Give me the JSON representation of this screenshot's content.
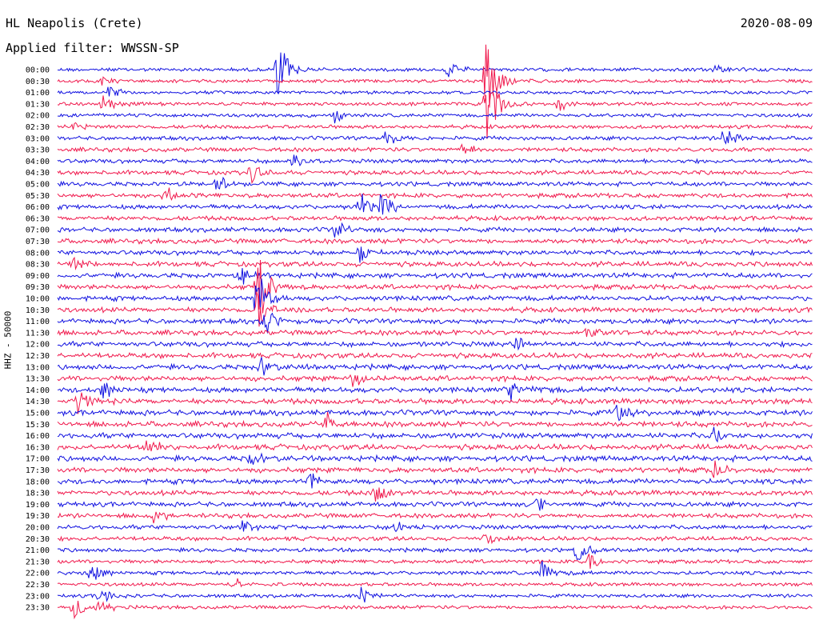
{
  "header": {
    "station": "HL Neapolis (Crete)",
    "date": "2020-08-09",
    "filter": "Applied filter: WWSSN-SP",
    "channel": "HHZ - 50000"
  },
  "colors": {
    "even_row": "#1010e0",
    "odd_row": "#f0184c"
  },
  "chart_data": {
    "type": "line",
    "title": "HL Neapolis (Crete)",
    "subtitle": "Applied filter: WWSSN-SP",
    "ylabel": "HHZ - 50000",
    "row_labels": [
      "00:00",
      "00:30",
      "01:00",
      "01:30",
      "02:00",
      "02:30",
      "03:00",
      "03:30",
      "04:00",
      "04:30",
      "05:00",
      "05:30",
      "06:00",
      "06:30",
      "07:00",
      "07:30",
      "08:00",
      "08:30",
      "09:00",
      "09:30",
      "10:00",
      "10:30",
      "11:00",
      "11:30",
      "12:00",
      "12:30",
      "13:00",
      "13:30",
      "14:00",
      "14:30",
      "15:00",
      "15:30",
      "16:00",
      "16:30",
      "17:00",
      "17:30",
      "18:00",
      "18:30",
      "19:00",
      "19:30",
      "20:00",
      "20:30",
      "21:00",
      "21:30",
      "22:00",
      "22:30",
      "23:00",
      "23:30"
    ],
    "row_colors": [
      "blue",
      "red"
    ],
    "noise_level": [
      0.35,
      0.3,
      0.3,
      0.35,
      0.35,
      0.4,
      0.45,
      0.5,
      0.5,
      0.55,
      0.55,
      0.6,
      0.6,
      0.6,
      0.6,
      0.65,
      0.65,
      0.7,
      0.7,
      0.7,
      0.7,
      0.7,
      0.7,
      0.7,
      0.7,
      0.75,
      0.75,
      0.75,
      0.8,
      0.8,
      0.8,
      0.8,
      0.8,
      0.8,
      0.8,
      0.75,
      0.75,
      0.7,
      0.65,
      0.6,
      0.55,
      0.5,
      0.45,
      0.4,
      0.4,
      0.35,
      0.35,
      0.35
    ],
    "events": [
      {
        "row": 0,
        "minute": 8.7,
        "amp": 45
      },
      {
        "row": 0,
        "minute": 15.5,
        "amp": 12
      },
      {
        "row": 0,
        "minute": 26.0,
        "amp": 8
      },
      {
        "row": 1,
        "minute": 1.6,
        "amp": 10
      },
      {
        "row": 1,
        "minute": 17.0,
        "amp": 55
      },
      {
        "row": 2,
        "minute": 2.0,
        "amp": 9
      },
      {
        "row": 3,
        "minute": 1.8,
        "amp": 12
      },
      {
        "row": 3,
        "minute": 17.0,
        "amp": 60
      },
      {
        "row": 3,
        "minute": 19.8,
        "amp": 14
      },
      {
        "row": 4,
        "minute": 11.0,
        "amp": 10
      },
      {
        "row": 5,
        "minute": 0.6,
        "amp": 8
      },
      {
        "row": 6,
        "minute": 13.0,
        "amp": 14
      },
      {
        "row": 6,
        "minute": 26.5,
        "amp": 18
      },
      {
        "row": 7,
        "minute": 16.0,
        "amp": 12
      },
      {
        "row": 8,
        "minute": 9.3,
        "amp": 14
      },
      {
        "row": 9,
        "minute": 7.6,
        "amp": 16
      },
      {
        "row": 10,
        "minute": 6.3,
        "amp": 14
      },
      {
        "row": 11,
        "minute": 4.2,
        "amp": 14
      },
      {
        "row": 12,
        "minute": 12.0,
        "amp": 22
      },
      {
        "row": 12,
        "minute": 12.8,
        "amp": 18
      },
      {
        "row": 14,
        "minute": 11.0,
        "amp": 12
      },
      {
        "row": 16,
        "minute": 12.0,
        "amp": 14
      },
      {
        "row": 17,
        "minute": 0.6,
        "amp": 12
      },
      {
        "row": 18,
        "minute": 7.2,
        "amp": 16
      },
      {
        "row": 19,
        "minute": 7.9,
        "amp": 60
      },
      {
        "row": 20,
        "minute": 7.9,
        "amp": 45
      },
      {
        "row": 21,
        "minute": 7.9,
        "amp": 30
      },
      {
        "row": 22,
        "minute": 8.2,
        "amp": 22
      },
      {
        "row": 23,
        "minute": 21.0,
        "amp": 12
      },
      {
        "row": 24,
        "minute": 18.2,
        "amp": 12
      },
      {
        "row": 26,
        "minute": 8.0,
        "amp": 15
      },
      {
        "row": 27,
        "minute": 11.7,
        "amp": 14
      },
      {
        "row": 28,
        "minute": 1.8,
        "amp": 14
      },
      {
        "row": 28,
        "minute": 18.0,
        "amp": 14
      },
      {
        "row": 29,
        "minute": 0.8,
        "amp": 18
      },
      {
        "row": 30,
        "minute": 22.2,
        "amp": 16
      },
      {
        "row": 31,
        "minute": 10.7,
        "amp": 14
      },
      {
        "row": 32,
        "minute": 26.0,
        "amp": 14
      },
      {
        "row": 33,
        "minute": 3.5,
        "amp": 14
      },
      {
        "row": 34,
        "minute": 7.6,
        "amp": 14
      },
      {
        "row": 35,
        "minute": 26.0,
        "amp": 16
      },
      {
        "row": 36,
        "minute": 10.0,
        "amp": 14
      },
      {
        "row": 37,
        "minute": 12.6,
        "amp": 14
      },
      {
        "row": 38,
        "minute": 19.0,
        "amp": 14
      },
      {
        "row": 39,
        "minute": 3.8,
        "amp": 12
      },
      {
        "row": 40,
        "minute": 7.3,
        "amp": 10
      },
      {
        "row": 40,
        "minute": 13.3,
        "amp": 12
      },
      {
        "row": 41,
        "minute": 16.9,
        "amp": 10
      },
      {
        "row": 42,
        "minute": 20.6,
        "amp": 18
      },
      {
        "row": 43,
        "minute": 21.1,
        "amp": 16
      },
      {
        "row": 44,
        "minute": 1.3,
        "amp": 14
      },
      {
        "row": 44,
        "minute": 19.2,
        "amp": 18
      },
      {
        "row": 45,
        "minute": 7.0,
        "amp": 10
      },
      {
        "row": 46,
        "minute": 1.6,
        "amp": 16
      },
      {
        "row": 46,
        "minute": 12.0,
        "amp": 12
      },
      {
        "row": 47,
        "minute": 0.6,
        "amp": 18
      },
      {
        "row": 47,
        "minute": 1.6,
        "amp": 14
      }
    ],
    "xlim": [
      0,
      30
    ]
  }
}
